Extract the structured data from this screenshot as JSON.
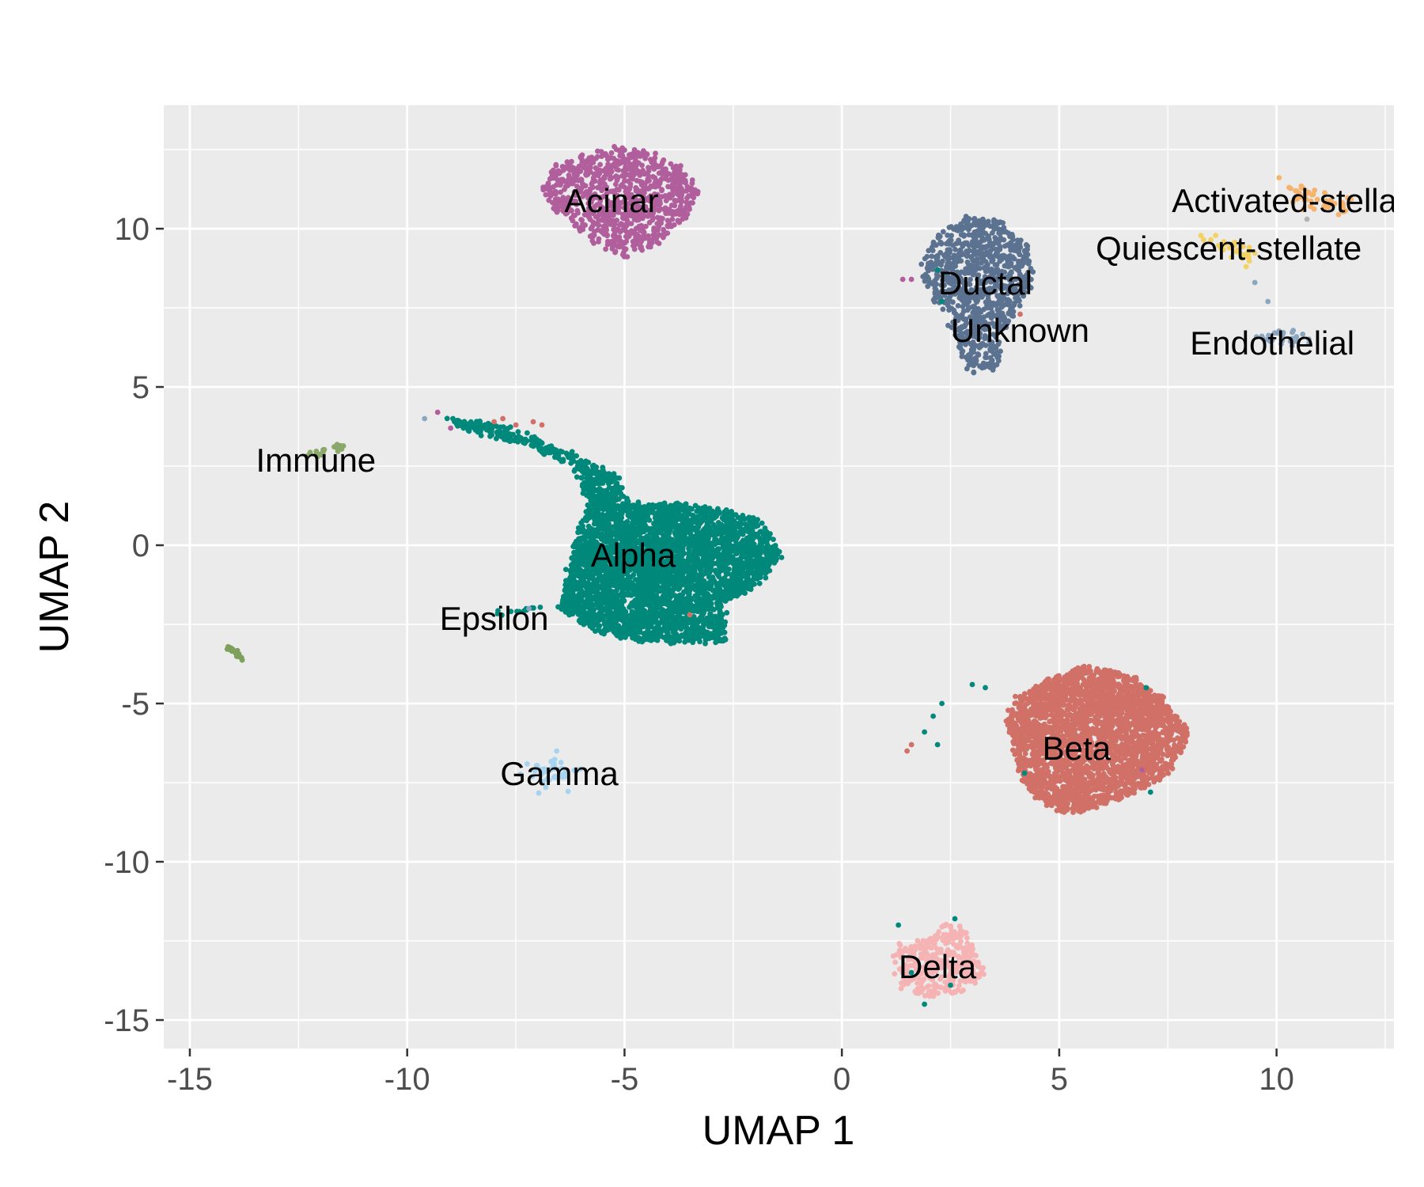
{
  "chart_data": {
    "type": "scatter",
    "title": "",
    "xlabel": "UMAP 1",
    "ylabel": "UMAP 2",
    "xlim": [
      -15.6,
      12.7
    ],
    "ylim": [
      -15.9,
      13.9
    ],
    "x_ticks": [
      -15,
      -10,
      -5,
      0,
      5,
      10
    ],
    "y_ticks": [
      -15,
      -10,
      -5,
      0,
      5,
      10
    ],
    "x_tick_labels": [
      "-15",
      "-10",
      "-5",
      "0",
      "5",
      "10"
    ],
    "y_tick_labels": [
      "-15",
      "-10",
      "-5",
      "0",
      "5",
      "10"
    ],
    "grid": true,
    "legend": "none",
    "background": "#ebebeb",
    "grid_color": "#ffffff",
    "clusters": [
      {
        "label": "Acinar",
        "color": "#b15e9c",
        "label_x": -5.3,
        "label_y": 10.9,
        "shape": "polygon",
        "count": 900,
        "spread": 0.12,
        "outline": [
          [
            -6.9,
            11.4
          ],
          [
            -6.6,
            12.0
          ],
          [
            -5.9,
            12.4
          ],
          [
            -5.2,
            12.6
          ],
          [
            -4.3,
            12.4
          ],
          [
            -3.5,
            11.8
          ],
          [
            -3.3,
            11.0
          ],
          [
            -3.7,
            10.2
          ],
          [
            -4.3,
            9.5
          ],
          [
            -5.0,
            9.1
          ],
          [
            -5.6,
            9.5
          ],
          [
            -6.2,
            10.1
          ],
          [
            -6.7,
            10.7
          ]
        ]
      },
      {
        "label": "Ductal",
        "color": "#5b7290",
        "label_x": 3.3,
        "label_y": 8.3,
        "shape": "polygon",
        "count": 900,
        "spread": 0.12,
        "outline": [
          [
            1.8,
            8.6
          ],
          [
            2.1,
            9.7
          ],
          [
            2.8,
            10.4
          ],
          [
            3.6,
            10.3
          ],
          [
            4.2,
            9.6
          ],
          [
            4.5,
            8.4
          ],
          [
            4.0,
            7.4
          ],
          [
            3.7,
            6.5
          ],
          [
            3.6,
            5.6
          ],
          [
            2.9,
            5.4
          ],
          [
            2.7,
            6.2
          ],
          [
            2.5,
            7.1
          ],
          [
            2.0,
            7.8
          ]
        ]
      },
      {
        "label": "Unknown",
        "color": "#5b7290",
        "label_x": 4.1,
        "label_y": 6.8,
        "shape": "points",
        "count": 0,
        "spread": 0,
        "outline": []
      },
      {
        "label": "Activated-stellate",
        "color": "#f5b36e",
        "label_x": 10.5,
        "label_y": 10.9,
        "shape": "line",
        "count": 45,
        "spread": 0.15,
        "outline": [
          [
            10.4,
            11.2
          ],
          [
            11.6,
            10.6
          ]
        ]
      },
      {
        "label": "Quiescent-stellate",
        "color": "#f2d264",
        "label_x": 8.9,
        "label_y": 9.4,
        "shape": "line",
        "count": 30,
        "spread": 0.12,
        "outline": [
          [
            8.4,
            9.8
          ],
          [
            9.3,
            9.1
          ]
        ]
      },
      {
        "label": "Endothelial",
        "color": "#8aa6c1",
        "label_x": 9.9,
        "label_y": 6.4,
        "shape": "line",
        "count": 30,
        "spread": 0.15,
        "outline": [
          [
            9.4,
            6.5
          ],
          [
            10.5,
            6.6
          ]
        ]
      },
      {
        "label": "Immune",
        "color": "#8aa86a",
        "label_x": -12.1,
        "label_y": 2.7,
        "shape": "line",
        "count": 20,
        "spread": 0.05,
        "outline": [
          [
            -12.3,
            2.8
          ],
          [
            -11.4,
            3.2
          ]
        ]
      },
      {
        "label": "Alpha",
        "color": "#00897b",
        "label_x": -4.8,
        "label_y": -0.3,
        "shape": "polygon",
        "count": 4200,
        "spread": 0.15,
        "outline": [
          [
            -6.5,
            -2.0
          ],
          [
            -6.1,
            0.2
          ],
          [
            -5.8,
            1.5
          ],
          [
            -6.2,
            2.5
          ],
          [
            -7.3,
            3.2
          ],
          [
            -8.6,
            3.6
          ],
          [
            -9.1,
            4.0
          ],
          [
            -7.9,
            3.8
          ],
          [
            -6.8,
            3.2
          ],
          [
            -5.9,
            2.7
          ],
          [
            -5.2,
            2.2
          ],
          [
            -4.9,
            1.3
          ],
          [
            -3.9,
            1.3
          ],
          [
            -2.6,
            1.1
          ],
          [
            -1.9,
            0.8
          ],
          [
            -1.4,
            -0.3
          ],
          [
            -1.9,
            -1.3
          ],
          [
            -2.7,
            -1.8
          ],
          [
            -2.7,
            -3.0
          ],
          [
            -3.5,
            -3.1
          ],
          [
            -4.7,
            -3.0
          ],
          [
            -5.7,
            -2.7
          ]
        ]
      },
      {
        "label": "Epsilon",
        "color": "#00897b",
        "label_x": -8.0,
        "label_y": -2.3,
        "shape": "line",
        "count": 12,
        "spread": 0.05,
        "outline": [
          [
            -8.0,
            -2.2
          ],
          [
            -7.0,
            -2.0
          ]
        ]
      },
      {
        "label": "Gamma",
        "color": "#a6d3f0",
        "label_x": -6.5,
        "label_y": -7.2,
        "shape": "blob",
        "count": 40,
        "spread": 0.25,
        "outline": [
          [
            -6.7,
            -7.2
          ]
        ]
      },
      {
        "label": "Beta",
        "color": "#d07066",
        "label_x": 5.4,
        "label_y": -6.4,
        "shape": "polygon",
        "count": 2700,
        "spread": 0.12,
        "outline": [
          [
            4.0,
            -4.8
          ],
          [
            4.8,
            -4.2
          ],
          [
            5.7,
            -3.8
          ],
          [
            6.6,
            -4.1
          ],
          [
            7.4,
            -4.8
          ],
          [
            8.0,
            -5.9
          ],
          [
            7.5,
            -7.3
          ],
          [
            6.8,
            -7.8
          ],
          [
            6.0,
            -8.2
          ],
          [
            5.2,
            -8.5
          ],
          [
            4.6,
            -8.2
          ],
          [
            4.2,
            -7.5
          ],
          [
            3.9,
            -6.4
          ],
          [
            3.8,
            -5.5
          ]
        ]
      },
      {
        "label": "Delta",
        "color": "#f6b3b4",
        "label_x": 2.2,
        "label_y": -13.3,
        "shape": "polygon",
        "count": 350,
        "spread": 0.1,
        "outline": [
          [
            1.3,
            -12.6
          ],
          [
            2.1,
            -12.4
          ],
          [
            2.3,
            -11.9
          ],
          [
            2.8,
            -12.1
          ],
          [
            3.1,
            -13.0
          ],
          [
            3.3,
            -13.6
          ],
          [
            2.8,
            -14.1
          ],
          [
            2.0,
            -14.3
          ],
          [
            1.4,
            -14.0
          ],
          [
            1.2,
            -13.3
          ]
        ]
      },
      {
        "label": "",
        "color": "#7fa05c",
        "label_x": null,
        "label_y": null,
        "shape": "line",
        "count": 18,
        "spread": 0.04,
        "outline": [
          [
            -14.1,
            -3.2
          ],
          [
            -13.8,
            -3.6
          ]
        ]
      }
    ],
    "extra_points": [
      {
        "x": -8.0,
        "y": 3.9,
        "color": "#d07066"
      },
      {
        "x": -7.5,
        "y": 3.8,
        "color": "#d07066"
      },
      {
        "x": -7.1,
        "y": 3.9,
        "color": "#d07066"
      },
      {
        "x": -6.9,
        "y": 3.8,
        "color": "#d07066"
      },
      {
        "x": -9.3,
        "y": 4.2,
        "color": "#b15e9c"
      },
      {
        "x": -9.6,
        "y": 4.0,
        "color": "#8aa6c1"
      },
      {
        "x": -9.0,
        "y": 3.7,
        "color": "#b15e9c"
      },
      {
        "x": -7.8,
        "y": 4.0,
        "color": "#d07066"
      },
      {
        "x": -7.2,
        "y": -2.0,
        "color": "#8aa6c1"
      },
      {
        "x": -3.5,
        "y": -2.2,
        "color": "#d07066"
      },
      {
        "x": 1.4,
        "y": 8.4,
        "color": "#b15e9c"
      },
      {
        "x": 1.6,
        "y": 8.4,
        "color": "#b15e9c"
      },
      {
        "x": 2.2,
        "y": 8.7,
        "color": "#00897b"
      },
      {
        "x": 2.3,
        "y": 7.7,
        "color": "#00897b"
      },
      {
        "x": 4.1,
        "y": 7.3,
        "color": "#d07066"
      },
      {
        "x": 9.3,
        "y": 8.8,
        "color": "#f2d264"
      },
      {
        "x": 9.5,
        "y": 8.3,
        "color": "#8aa6c1"
      },
      {
        "x": 9.8,
        "y": 7.7,
        "color": "#8aa6c1"
      },
      {
        "x": 10.7,
        "y": 10.3,
        "color": "#b3b3b3"
      },
      {
        "x": 3.0,
        "y": -4.4,
        "color": "#00897b"
      },
      {
        "x": 3.3,
        "y": -4.5,
        "color": "#00897b"
      },
      {
        "x": 2.3,
        "y": -5.0,
        "color": "#00897b"
      },
      {
        "x": 2.1,
        "y": -5.4,
        "color": "#00897b"
      },
      {
        "x": 2.2,
        "y": -6.3,
        "color": "#00897b"
      },
      {
        "x": 1.9,
        "y": -5.9,
        "color": "#00897b"
      },
      {
        "x": 4.2,
        "y": -7.2,
        "color": "#00897b"
      },
      {
        "x": 7.0,
        "y": -4.5,
        "color": "#00897b"
      },
      {
        "x": 7.1,
        "y": -7.8,
        "color": "#00897b"
      },
      {
        "x": 6.9,
        "y": -7.1,
        "color": "#b15e9c"
      },
      {
        "x": 1.6,
        "y": -6.3,
        "color": "#d07066"
      },
      {
        "x": 1.5,
        "y": -6.5,
        "color": "#d07066"
      },
      {
        "x": 1.3,
        "y": -12.0,
        "color": "#00897b"
      },
      {
        "x": 2.6,
        "y": -11.8,
        "color": "#00897b"
      },
      {
        "x": 1.9,
        "y": -14.5,
        "color": "#00897b"
      },
      {
        "x": 1.6,
        "y": -13.5,
        "color": "#00897b"
      },
      {
        "x": 2.5,
        "y": -13.9,
        "color": "#00897b"
      }
    ]
  }
}
